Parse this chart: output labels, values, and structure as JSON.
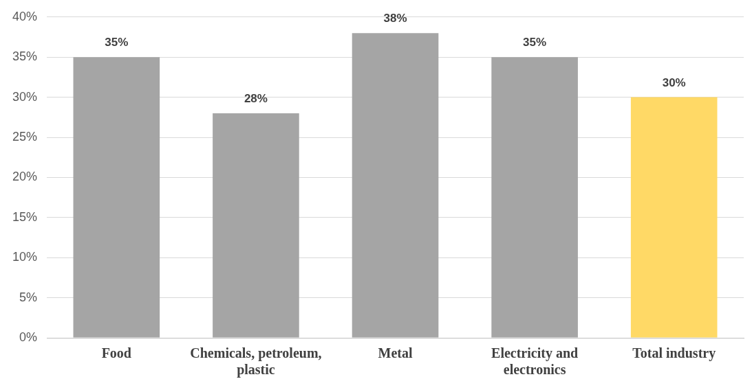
{
  "chart_data": {
    "type": "bar",
    "categories": [
      "Food",
      "Chemicals, petroleum, plastic",
      "Metal",
      "Electricity and electronics",
      "Total industry"
    ],
    "values": [
      35,
      28,
      38,
      35,
      30
    ],
    "colors": [
      "#a5a5a5",
      "#a5a5a5",
      "#a5a5a5",
      "#a5a5a5",
      "#ffd966"
    ],
    "value_labels": [
      "35%",
      "28%",
      "38%",
      "35%",
      "30%"
    ],
    "ylim": [
      0,
      40
    ],
    "yticks": [
      {
        "value": 0,
        "label": "0%"
      },
      {
        "value": 5,
        "label": "5%"
      },
      {
        "value": 10,
        "label": "10%"
      },
      {
        "value": 15,
        "label": "15%"
      },
      {
        "value": 20,
        "label": "20%"
      },
      {
        "value": 25,
        "label": "25%"
      },
      {
        "value": 30,
        "label": "30%"
      },
      {
        "value": 35,
        "label": "35%"
      },
      {
        "value": 40,
        "label": "40%"
      }
    ],
    "grid": "y",
    "legend": false
  }
}
